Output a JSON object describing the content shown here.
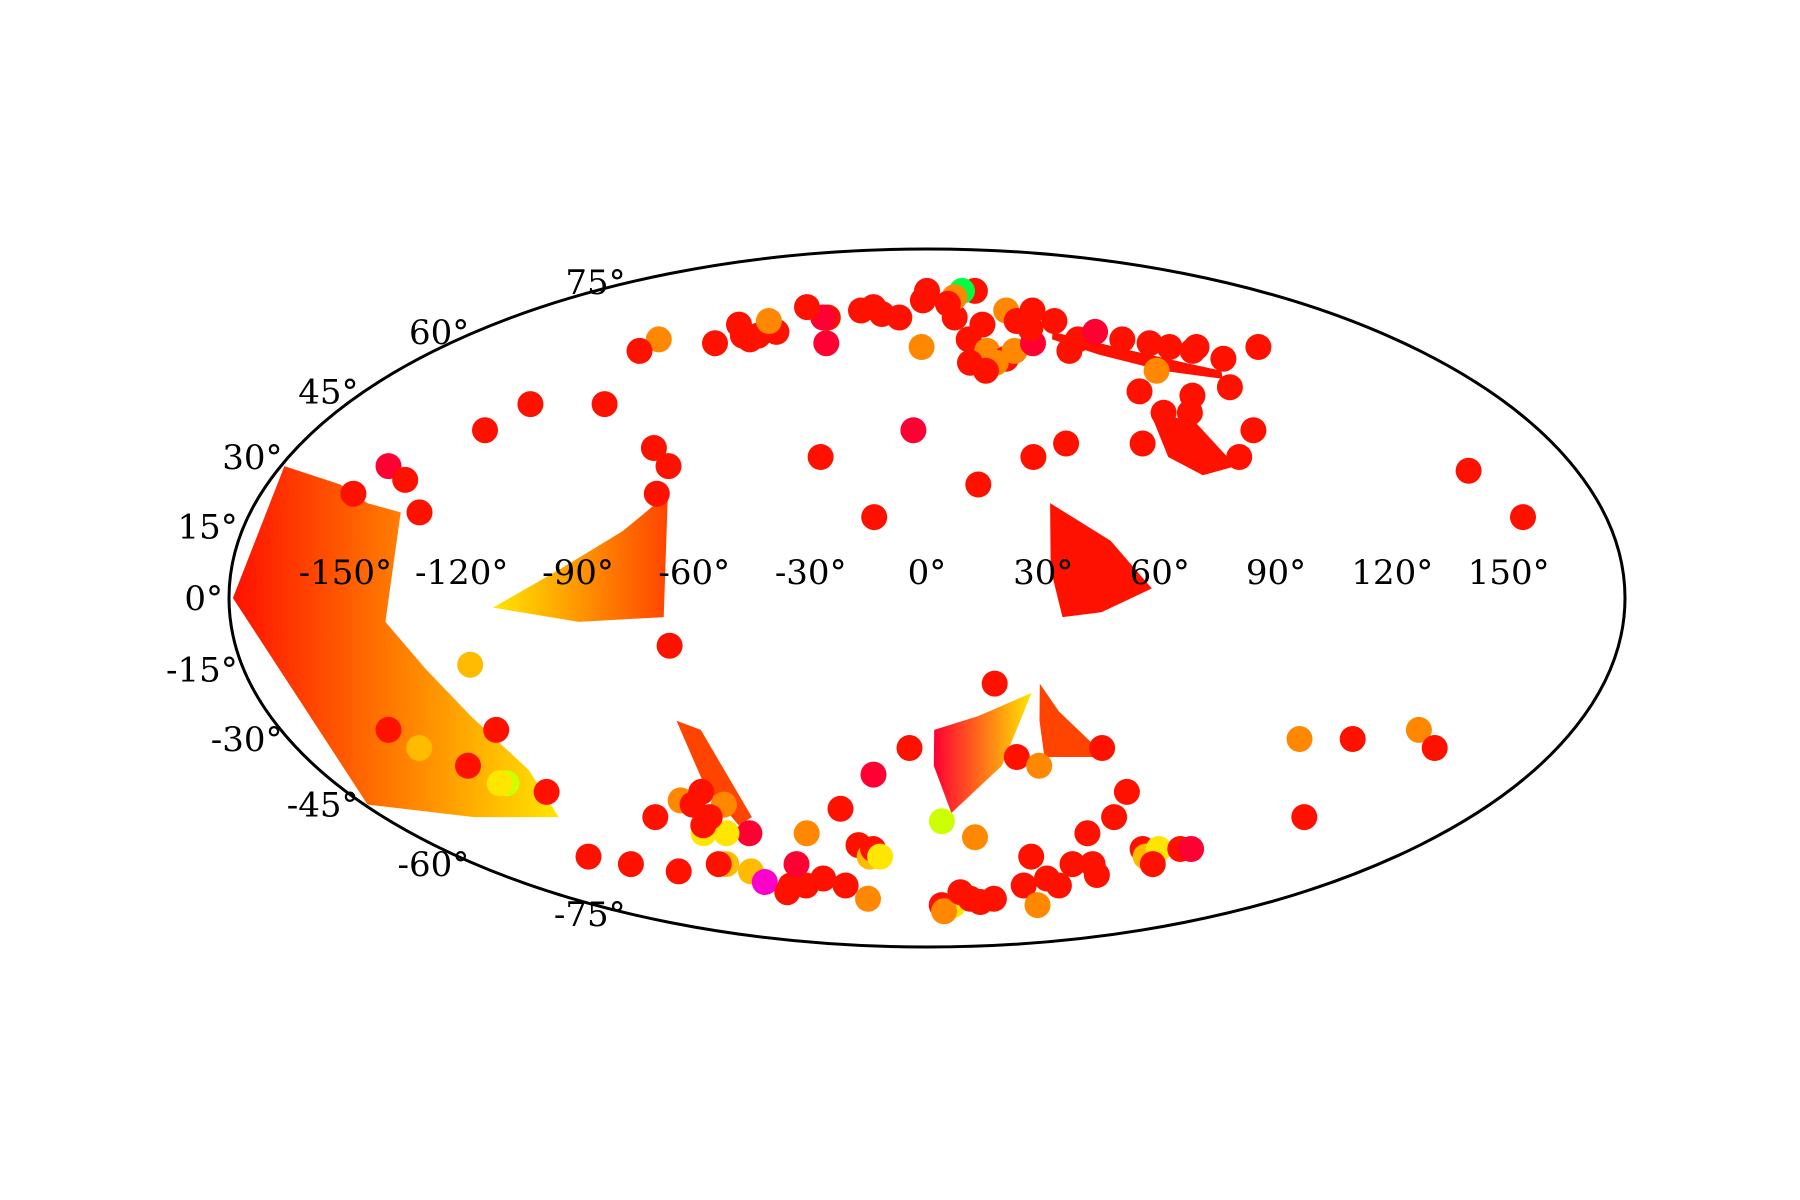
{
  "chart_data": {
    "type": "scatter",
    "projection": "mollweide",
    "title": "",
    "xlabel": "",
    "ylabel": "",
    "longitude_ticks": [
      {
        "value": -150,
        "label": "-150°"
      },
      {
        "value": -120,
        "label": "-120°"
      },
      {
        "value": -90,
        "label": "-90°"
      },
      {
        "value": -60,
        "label": "-60°"
      },
      {
        "value": -30,
        "label": "-30°"
      },
      {
        "value": 0,
        "label": "0°"
      },
      {
        "value": 30,
        "label": "30°"
      },
      {
        "value": 60,
        "label": "60°"
      },
      {
        "value": 90,
        "label": "90°"
      },
      {
        "value": 120,
        "label": "120°"
      },
      {
        "value": 150,
        "label": "150°"
      }
    ],
    "latitude_ticks": [
      {
        "value": 75,
        "label": "75°"
      },
      {
        "value": 60,
        "label": "60°"
      },
      {
        "value": 45,
        "label": "45°"
      },
      {
        "value": 30,
        "label": "30°"
      },
      {
        "value": 15,
        "label": "15°"
      },
      {
        "value": 0,
        "label": "0°"
      },
      {
        "value": -15,
        "label": "-15°"
      },
      {
        "value": -30,
        "label": "-30°"
      },
      {
        "value": -45,
        "label": "-45°"
      },
      {
        "value": -60,
        "label": "-60°"
      },
      {
        "value": -75,
        "label": "-75°"
      }
    ],
    "colors": {
      "crimson": "#ff0033",
      "red": "#ff1100",
      "red_orange": "#ff4400",
      "orange": "#ff8800",
      "gold": "#ffbb00",
      "yellow": "#ffe600",
      "lime": "#ccff00",
      "green": "#00ff44",
      "magenta": "#ff00cc"
    },
    "regions": [
      {
        "name": "west-limb-fan",
        "color": "red",
        "gradient_to": "yellow",
        "points": [
          [
            -179,
            28
          ],
          [
            -160,
            24
          ],
          [
            -150,
            20
          ],
          [
            -140,
            18
          ],
          [
            -140,
            -5
          ],
          [
            -132,
            -15
          ],
          [
            -125,
            -25
          ],
          [
            -118,
            -37
          ],
          [
            -122,
            -48
          ],
          [
            -150,
            -48
          ],
          [
            -179,
            -45
          ],
          [
            -179,
            0
          ]
        ]
      },
      {
        "name": "mid-west-fan",
        "color": "yellow",
        "gradient_to": "red_orange",
        "points": [
          [
            -112,
            -2
          ],
          [
            -95,
            6
          ],
          [
            -80,
            14
          ],
          [
            -70,
            22
          ],
          [
            -68,
            -4
          ],
          [
            -90,
            -5
          ]
        ]
      },
      {
        "name": "andes-band",
        "color": "red_orange",
        "points": [
          [
            -69,
            -26
          ],
          [
            -63,
            -28
          ],
          [
            -58,
            -48
          ],
          [
            -64,
            -50
          ],
          [
            -68,
            -40
          ]
        ]
      },
      {
        "name": "east-africa-wedge",
        "color": "red",
        "points": [
          [
            33,
            20
          ],
          [
            48,
            12
          ],
          [
            58,
            2
          ],
          [
            45,
            -3
          ],
          [
            35,
            -4
          ],
          [
            32,
            6
          ]
        ]
      },
      {
        "name": "south-atlantic-wedge",
        "color": "crimson",
        "gradient_to": "yellow",
        "points": [
          [
            2,
            -28
          ],
          [
            14,
            -25
          ],
          [
            28,
            -20
          ],
          [
            22,
            -36
          ],
          [
            8,
            -47
          ],
          [
            2,
            -36
          ]
        ]
      },
      {
        "name": "madagascar-wedge",
        "color": "red_orange",
        "points": [
          [
            30,
            -18
          ],
          [
            36,
            -24
          ],
          [
            52,
            -34
          ],
          [
            34,
            -34
          ],
          [
            31,
            -26
          ]
        ]
      },
      {
        "name": "central-asia-patch",
        "color": "red",
        "points": [
          [
            68,
            40
          ],
          [
            80,
            38
          ],
          [
            86,
            28
          ],
          [
            76,
            26
          ],
          [
            68,
            30
          ]
        ]
      },
      {
        "name": "himalaya-arc",
        "color": "red",
        "points": [
          [
            50,
            60
          ],
          [
            70,
            56
          ],
          [
            90,
            52
          ],
          [
            100,
            50
          ],
          [
            98,
            48
          ],
          [
            80,
            50
          ],
          [
            62,
            54
          ],
          [
            48,
            58
          ]
        ]
      }
    ],
    "series": [
      {
        "name": "events",
        "points": [
          [
            -150,
            28,
            "crimson"
          ],
          [
            -143,
            25,
            "red"
          ],
          [
            -135,
            18,
            "red"
          ],
          [
            -155,
            22,
            "red"
          ],
          [
            -150,
            -28,
            "red"
          ],
          [
            -120,
            -28,
            "red"
          ],
          [
            -135,
            -36,
            "red"
          ],
          [
            -118,
            -42,
            "red"
          ],
          [
            -145,
            -32,
            "gold"
          ],
          [
            -120,
            -14,
            "gold"
          ],
          [
            -128,
            -40,
            "lime"
          ],
          [
            -130,
            -40,
            "yellow"
          ],
          [
            -130,
            -58,
            "red"
          ],
          [
            -118,
            -60,
            "red"
          ],
          [
            -103,
            -62,
            "red"
          ],
          [
            -90,
            -48,
            "red"
          ],
          [
            -80,
            -60,
            "gold"
          ],
          [
            -78,
            -44,
            "orange"
          ],
          [
            -75,
            -45,
            "red"
          ],
          [
            -70,
            -42,
            "red"
          ],
          [
            -65,
            -45,
            "orange"
          ],
          [
            -62,
            -52,
            "crimson"
          ],
          [
            -78,
            -52,
            "yellow"
          ],
          [
            -70,
            -52,
            "yellow"
          ],
          [
            -72,
            -48,
            "red"
          ],
          [
            -76,
            -50,
            "red"
          ],
          [
            -83,
            -60,
            "red"
          ],
          [
            -73,
            -62,
            "gold"
          ],
          [
            -72,
            -65,
            "magenta"
          ],
          [
            -62,
            -66,
            "red"
          ],
          [
            -67,
            -68,
            "red"
          ],
          [
            -55,
            -66,
            "red"
          ],
          [
            -52,
            -60,
            "crimson"
          ],
          [
            -45,
            -64,
            "red"
          ],
          [
            -42,
            -52,
            "orange"
          ],
          [
            -37,
            -66,
            "red"
          ],
          [
            -30,
            -70,
            "orange"
          ],
          [
            -28,
            -46,
            "red"
          ],
          [
            -25,
            -55,
            "red"
          ],
          [
            -22,
            -58,
            "gold"
          ],
          [
            -20,
            -56,
            "red"
          ],
          [
            -18,
            -58,
            "yellow"
          ],
          [
            -16,
            -38,
            "crimson"
          ],
          [
            -30,
            30,
            "red"
          ],
          [
            -14,
            17,
            "red"
          ],
          [
            -4,
            36,
            "crimson"
          ],
          [
            14,
            24,
            "red"
          ],
          [
            18,
            -18,
            "red"
          ],
          [
            26,
            -34,
            "red"
          ],
          [
            33,
            -36,
            "orange"
          ],
          [
            50,
            -32,
            "red"
          ],
          [
            -5,
            -32,
            "red"
          ],
          [
            5,
            -49,
            "lime"
          ],
          [
            17,
            -53,
            "orange"
          ],
          [
            14,
            -72,
            "yellow"
          ],
          [
            8,
            -72,
            "red"
          ],
          [
            10,
            -74,
            "orange"
          ],
          [
            16,
            -68,
            "red"
          ],
          [
            22,
            -70,
            "red"
          ],
          [
            28,
            -71,
            "red"
          ],
          [
            34,
            -70,
            "red"
          ],
          [
            40,
            -58,
            "red"
          ],
          [
            44,
            -66,
            "red"
          ],
          [
            52,
            -64,
            "red"
          ],
          [
            58,
            -60,
            "red"
          ],
          [
            60,
            -66,
            "red"
          ],
          [
            60,
            -72,
            "orange"
          ],
          [
            62,
            -42,
            "red"
          ],
          [
            62,
            -48,
            "red"
          ],
          [
            56,
            -52,
            "red"
          ],
          [
            66,
            -60,
            "red"
          ],
          [
            72,
            -63,
            "red"
          ],
          [
            80,
            -56,
            "red"
          ],
          [
            84,
            -58,
            "gold"
          ],
          [
            86,
            -56,
            "yellow"
          ],
          [
            90,
            -60,
            "red"
          ],
          [
            94,
            -56,
            "red"
          ],
          [
            98,
            -56,
            "crimson"
          ],
          [
            105,
            -30,
            "orange"
          ],
          [
            120,
            -30,
            "red"
          ],
          [
            137,
            -28,
            "orange"
          ],
          [
            145,
            -32,
            "red"
          ],
          [
            125,
            -48,
            "red"
          ],
          [
            150,
            27,
            "red"
          ],
          [
            158,
            17,
            "red"
          ],
          [
            30,
            30,
            "red"
          ],
          [
            40,
            33,
            "red"
          ],
          [
            62,
            33,
            "red"
          ],
          [
            72,
            40,
            "red"
          ],
          [
            80,
            40,
            "red"
          ],
          [
            88,
            30,
            "red"
          ],
          [
            68,
            45,
            "red"
          ],
          [
            84,
            44,
            "red"
          ],
          [
            96,
            36,
            "red"
          ],
          [
            98,
            46,
            "red"
          ],
          [
            100,
            56,
            "red"
          ],
          [
            105,
            53,
            "red"
          ],
          [
            123,
            56,
            "red"
          ],
          [
            78,
            50,
            "orange"
          ],
          [
            58,
            58,
            "red"
          ],
          [
            67,
            60,
            "crimson"
          ],
          [
            75,
            58,
            "red"
          ],
          [
            84,
            57,
            "red"
          ],
          [
            90,
            56,
            "red"
          ],
          [
            97,
            55,
            "red"
          ],
          [
            16,
            58,
            "red"
          ],
          [
            22,
            55,
            "orange"
          ],
          [
            28,
            53,
            "red"
          ],
          [
            32,
            55,
            "orange"
          ],
          [
            40,
            57,
            "crimson"
          ],
          [
            52,
            55,
            "red"
          ],
          [
            -2,
            56,
            "orange"
          ],
          [
            15,
            52,
            "red"
          ],
          [
            24,
            52,
            "orange"
          ],
          [
            20,
            50,
            "red"
          ],
          [
            12,
            64,
            "red"
          ],
          [
            23,
            62,
            "red"
          ],
          [
            36,
            66,
            "orange"
          ],
          [
            38,
            63,
            "red"
          ],
          [
            42,
            61,
            "red"
          ],
          [
            54,
            63,
            "red"
          ],
          [
            48,
            66,
            "red"
          ],
          [
            26,
            72,
            "red"
          ],
          [
            19,
            72,
            "green"
          ],
          [
            14,
            70,
            "orange"
          ],
          [
            -2,
            69,
            "red"
          ],
          [
            10,
            68,
            "red"
          ],
          [
            0,
            72,
            "red"
          ],
          [
            -30,
            66,
            "red"
          ],
          [
            -25,
            67,
            "red"
          ],
          [
            -20,
            65,
            "red"
          ],
          [
            -12,
            64,
            "red"
          ],
          [
            -38,
            57,
            "crimson"
          ],
          [
            -43,
            64,
            "red"
          ],
          [
            -45,
            64,
            "crimson"
          ],
          [
            -56,
            67,
            "red"
          ],
          [
            -72,
            59,
            "red"
          ],
          [
            -60,
            60,
            "red"
          ],
          [
            -66,
            59,
            "red"
          ],
          [
            -67,
            63,
            "orange"
          ],
          [
            -68,
            58,
            "red"
          ],
          [
            -78,
            62,
            "red"
          ],
          [
            -80,
            57,
            "red"
          ],
          [
            -103,
            58,
            "orange"
          ],
          [
            -105,
            55,
            "red"
          ],
          [
            -123,
            42,
            "red"
          ],
          [
            -100,
            42,
            "red"
          ],
          [
            -130,
            36,
            "red"
          ],
          [
            -78,
            32,
            "red"
          ],
          [
            -72,
            28,
            "red"
          ],
          [
            -73,
            22,
            "red"
          ],
          [
            -67,
            -10,
            "red"
          ]
        ]
      }
    ]
  }
}
